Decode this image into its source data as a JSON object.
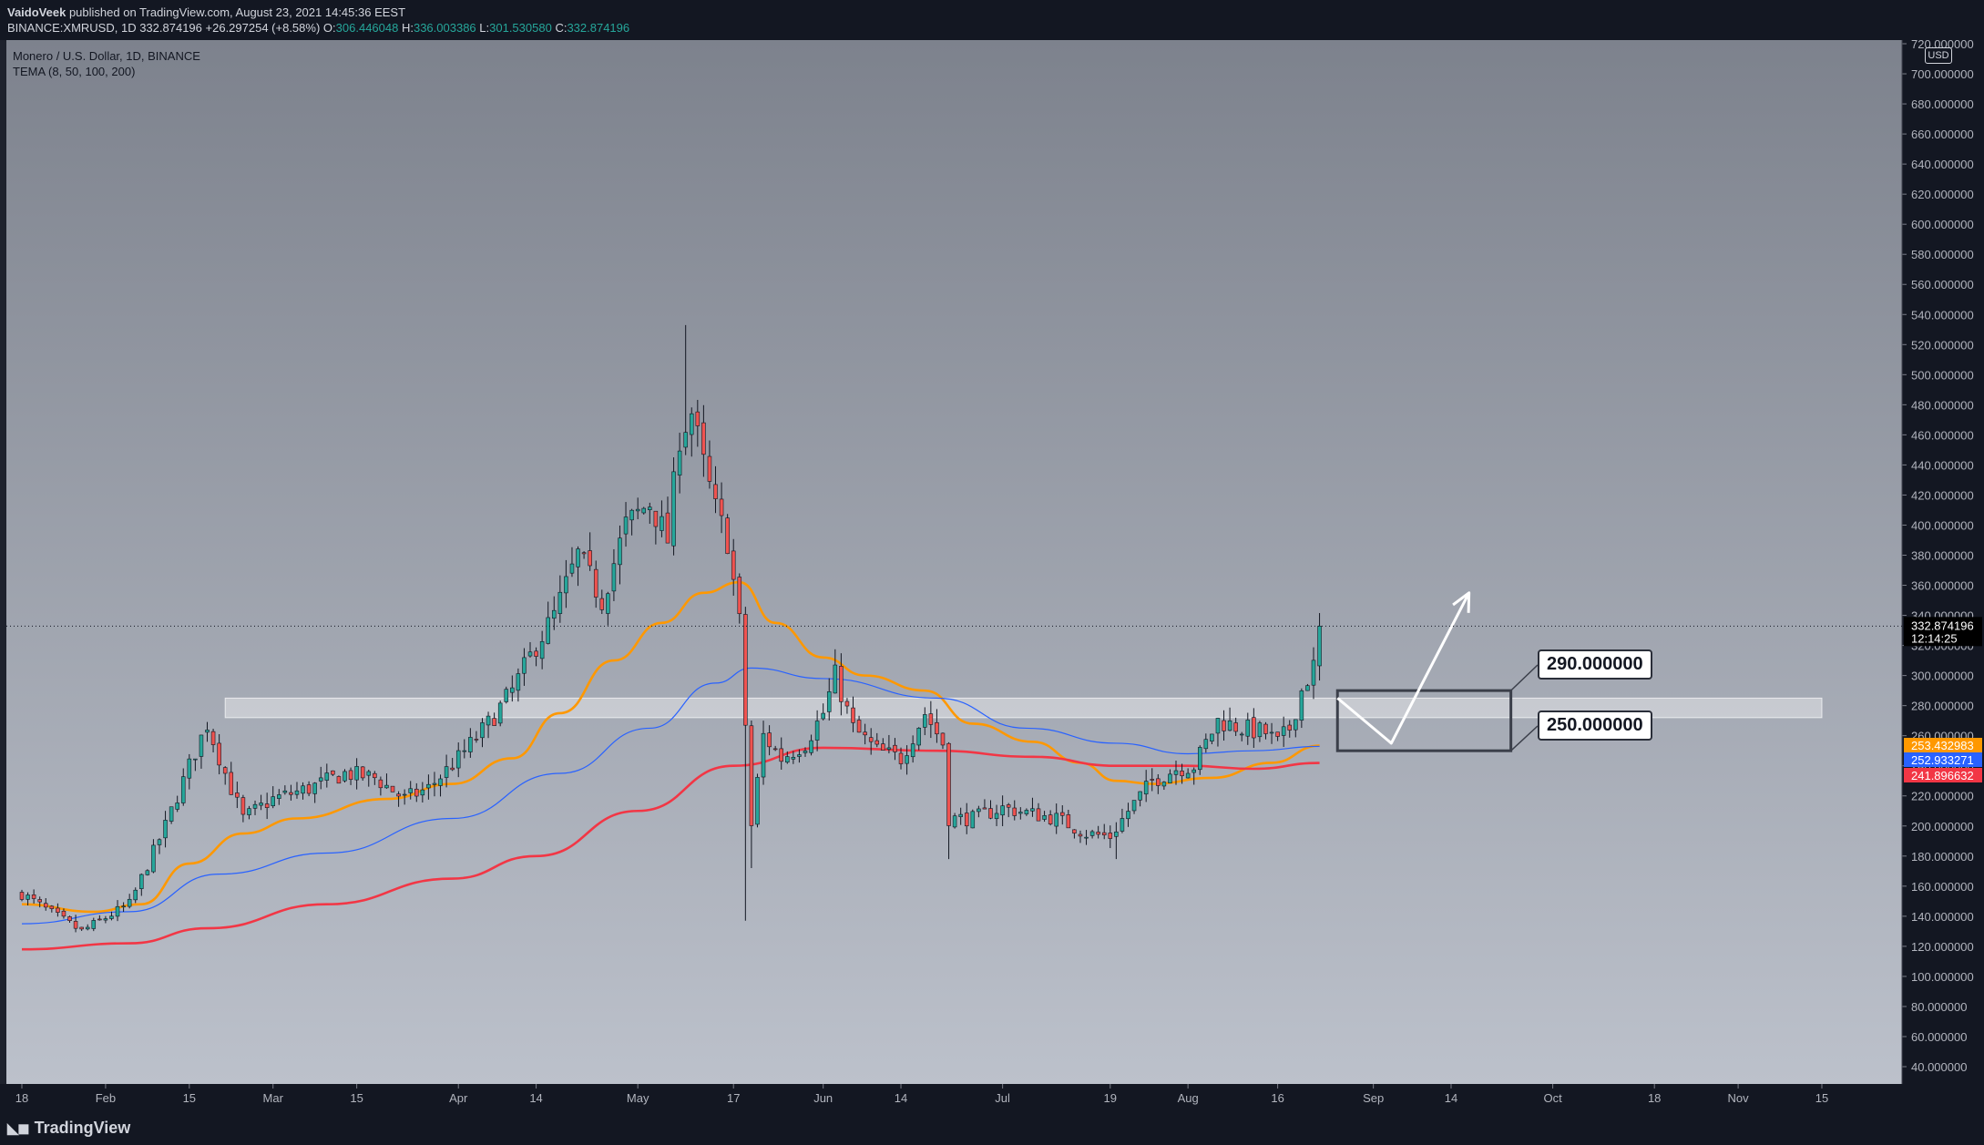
{
  "header": {
    "author": "VaidoVeek",
    "published_text": "published on TradingView.com, August 23, 2021 14:45:36 EEST",
    "symbol": "BINANCE:XMRUSD, 1D",
    "last": "332.874196",
    "change": "+26.297254 (+8.58%)",
    "open_label": "O:",
    "open": "306.446048",
    "high_label": "H:",
    "high": "336.003386",
    "low_label": "L:",
    "low": "301.530580",
    "close_label": "C:",
    "close": "332.874196"
  },
  "legend": {
    "title": "Monero / U.S. Dollar, 1D, BINANCE",
    "indicator": "TEMA (8, 50, 100, 200)"
  },
  "price_scale": {
    "currency": "USD",
    "current_price": "332.874196",
    "countdown": "12:14:25",
    "ema_labels": [
      {
        "value": "253.432983",
        "color": "#ff9800"
      },
      {
        "value": "252.933271",
        "color": "#2962ff"
      },
      {
        "value": "241.896632",
        "color": "#f23645"
      }
    ]
  },
  "annotations": {
    "upper_level": "290.000000",
    "lower_level": "250.000000"
  },
  "footer": {
    "brand": "TradingView"
  },
  "colors": {
    "up": "#26a69a",
    "down": "#ef5350",
    "ema_fast": "#ff9800",
    "ema_mid": "#2962ff",
    "ema_slow": "#f23645"
  },
  "chart_data": {
    "type": "candlestick",
    "title": "Monero / U.S. Dollar, 1D, BINANCE",
    "ylim": [
      20,
      730
    ],
    "y_ticks": [
      "40.000000",
      "60.000000",
      "80.000000",
      "100.000000",
      "120.000000",
      "140.000000",
      "160.000000",
      "180.000000",
      "200.000000",
      "220.000000",
      "240.000000",
      "260.000000",
      "280.000000",
      "300.000000",
      "320.000000",
      "340.000000",
      "360.000000",
      "380.000000",
      "400.000000",
      "420.000000",
      "440.000000",
      "460.000000",
      "480.000000",
      "500.000000",
      "520.000000",
      "540.000000",
      "560.000000",
      "580.000000",
      "600.000000",
      "620.000000",
      "640.000000",
      "660.000000",
      "680.000000",
      "700.000000",
      "720.000000"
    ],
    "x_range": [
      "2021-01-18",
      "2021-11-15"
    ],
    "x_ticks": [
      {
        "label": "18",
        "date": "2021-01-18"
      },
      {
        "label": "Feb",
        "date": "2021-02-01"
      },
      {
        "label": "15",
        "date": "2021-02-15"
      },
      {
        "label": "Mar",
        "date": "2021-03-01"
      },
      {
        "label": "15",
        "date": "2021-03-15"
      },
      {
        "label": "Apr",
        "date": "2021-04-01"
      },
      {
        "label": "14",
        "date": "2021-04-14"
      },
      {
        "label": "May",
        "date": "2021-05-01"
      },
      {
        "label": "17",
        "date": "2021-05-17"
      },
      {
        "label": "Jun",
        "date": "2021-06-01"
      },
      {
        "label": "14",
        "date": "2021-06-14"
      },
      {
        "label": "Jul",
        "date": "2021-07-01"
      },
      {
        "label": "19",
        "date": "2021-07-19"
      },
      {
        "label": "Aug",
        "date": "2021-08-01"
      },
      {
        "label": "16",
        "date": "2021-08-16"
      },
      {
        "label": "Sep",
        "date": "2021-09-01"
      },
      {
        "label": "14",
        "date": "2021-09-14"
      },
      {
        "label": "Oct",
        "date": "2021-10-01"
      },
      {
        "label": "18",
        "date": "2021-10-18"
      },
      {
        "label": "Nov",
        "date": "2021-11-01"
      },
      {
        "label": "15",
        "date": "2021-11-15"
      }
    ],
    "close_keypoints": [
      [
        "2021-01-18",
        155
      ],
      [
        "2021-01-23",
        142
      ],
      [
        "2021-01-28",
        130
      ],
      [
        "2021-02-05",
        148
      ],
      [
        "2021-02-11",
        200
      ],
      [
        "2021-02-15",
        240
      ],
      [
        "2021-02-18",
        268
      ],
      [
        "2021-02-21",
        235
      ],
      [
        "2021-02-24",
        205
      ],
      [
        "2021-03-01",
        218
      ],
      [
        "2021-03-07",
        225
      ],
      [
        "2021-03-13",
        235
      ],
      [
        "2021-03-18",
        232
      ],
      [
        "2021-03-23",
        218
      ],
      [
        "2021-03-27",
        225
      ],
      [
        "2021-04-01",
        245
      ],
      [
        "2021-04-06",
        268
      ],
      [
        "2021-04-10",
        290
      ],
      [
        "2021-04-14",
        320
      ],
      [
        "2021-04-17",
        340
      ],
      [
        "2021-04-21",
        380
      ],
      [
        "2021-04-25",
        350
      ],
      [
        "2021-04-29",
        400
      ],
      [
        "2021-05-03",
        415
      ],
      [
        "2021-05-06",
        390
      ],
      [
        "2021-05-08",
        460
      ],
      [
        "2021-05-10",
        475
      ],
      [
        "2021-05-12",
        440
      ],
      [
        "2021-05-14",
        410
      ],
      [
        "2021-05-16",
        390
      ],
      [
        "2021-05-18",
        335
      ],
      [
        "2021-05-20",
        200
      ],
      [
        "2021-05-22",
        260
      ],
      [
        "2021-05-25",
        245
      ],
      [
        "2021-05-29",
        255
      ],
      [
        "2021-06-01",
        275
      ],
      [
        "2021-06-03",
        300
      ],
      [
        "2021-06-06",
        265
      ],
      [
        "2021-06-10",
        250
      ],
      [
        "2021-06-14",
        245
      ],
      [
        "2021-06-18",
        275
      ],
      [
        "2021-06-21",
        255
      ],
      [
        "2021-06-22",
        205
      ],
      [
        "2021-06-26",
        205
      ],
      [
        "2021-07-01",
        212
      ],
      [
        "2021-07-06",
        208
      ],
      [
        "2021-07-10",
        205
      ],
      [
        "2021-07-15",
        195
      ],
      [
        "2021-07-19",
        193
      ],
      [
        "2021-07-22",
        210
      ],
      [
        "2021-07-26",
        230
      ],
      [
        "2021-07-30",
        238
      ],
      [
        "2021-08-02",
        240
      ],
      [
        "2021-08-06",
        270
      ],
      [
        "2021-08-10",
        265
      ],
      [
        "2021-08-14",
        262
      ],
      [
        "2021-08-16",
        255
      ],
      [
        "2021-08-18",
        265
      ],
      [
        "2021-08-20",
        290
      ],
      [
        "2021-08-22",
        306
      ],
      [
        "2021-08-23",
        333
      ]
    ],
    "series": [
      {
        "name": "TEMA 8",
        "color": "#ff9800",
        "values": [
          [
            "2021-01-18",
            148
          ],
          [
            "2021-01-30",
            143
          ],
          [
            "2021-02-07",
            148
          ],
          [
            "2021-02-15",
            175
          ],
          [
            "2021-02-24",
            195
          ],
          [
            "2021-03-05",
            205
          ],
          [
            "2021-03-20",
            218
          ],
          [
            "2021-03-31",
            228
          ],
          [
            "2021-04-10",
            245
          ],
          [
            "2021-04-18",
            275
          ],
          [
            "2021-04-27",
            310
          ],
          [
            "2021-05-05",
            335
          ],
          [
            "2021-05-12",
            355
          ],
          [
            "2021-05-18",
            362
          ],
          [
            "2021-05-24",
            335
          ],
          [
            "2021-06-01",
            312
          ],
          [
            "2021-06-08",
            300
          ],
          [
            "2021-06-18",
            290
          ],
          [
            "2021-06-26",
            268
          ],
          [
            "2021-07-06",
            256
          ],
          [
            "2021-07-14",
            242
          ],
          [
            "2021-07-20",
            230
          ],
          [
            "2021-07-26",
            228
          ],
          [
            "2021-08-05",
            232
          ],
          [
            "2021-08-15",
            242
          ],
          [
            "2021-08-23",
            253.4
          ]
        ]
      },
      {
        "name": "TEMA 50",
        "color": "#2962ff",
        "values": [
          [
            "2021-01-18",
            135
          ],
          [
            "2021-02-05",
            143
          ],
          [
            "2021-02-20",
            168
          ],
          [
            "2021-03-10",
            182
          ],
          [
            "2021-03-31",
            205
          ],
          [
            "2021-04-18",
            235
          ],
          [
            "2021-05-03",
            265
          ],
          [
            "2021-05-14",
            295
          ],
          [
            "2021-05-20",
            305
          ],
          [
            "2021-06-01",
            298
          ],
          [
            "2021-06-20",
            285
          ],
          [
            "2021-07-05",
            265
          ],
          [
            "2021-07-20",
            255
          ],
          [
            "2021-08-01",
            248
          ],
          [
            "2021-08-12",
            250
          ],
          [
            "2021-08-23",
            252.9
          ]
        ]
      },
      {
        "name": "TEMA 200",
        "color": "#f23645",
        "values": [
          [
            "2021-01-18",
            118
          ],
          [
            "2021-02-05",
            122
          ],
          [
            "2021-02-18",
            132
          ],
          [
            "2021-03-10",
            148
          ],
          [
            "2021-03-31",
            165
          ],
          [
            "2021-04-14",
            180
          ],
          [
            "2021-05-01",
            210
          ],
          [
            "2021-05-17",
            240
          ],
          [
            "2021-06-01",
            252
          ],
          [
            "2021-06-20",
            250
          ],
          [
            "2021-07-06",
            246
          ],
          [
            "2021-07-20",
            240
          ],
          [
            "2021-08-01",
            240
          ],
          [
            "2021-08-12",
            238
          ],
          [
            "2021-08-23",
            241.9
          ]
        ]
      }
    ],
    "zone": {
      "from": "2021-02-21",
      "to": "2021-11-15",
      "y_low": 272,
      "y_high": 285
    },
    "box": {
      "from": "2021-08-26",
      "to": "2021-09-24",
      "y_low": 250,
      "y_high": 290
    },
    "projection": [
      [
        "2021-08-26",
        285
      ],
      [
        "2021-09-04",
        255
      ],
      [
        "2021-09-17",
        355
      ]
    ]
  }
}
